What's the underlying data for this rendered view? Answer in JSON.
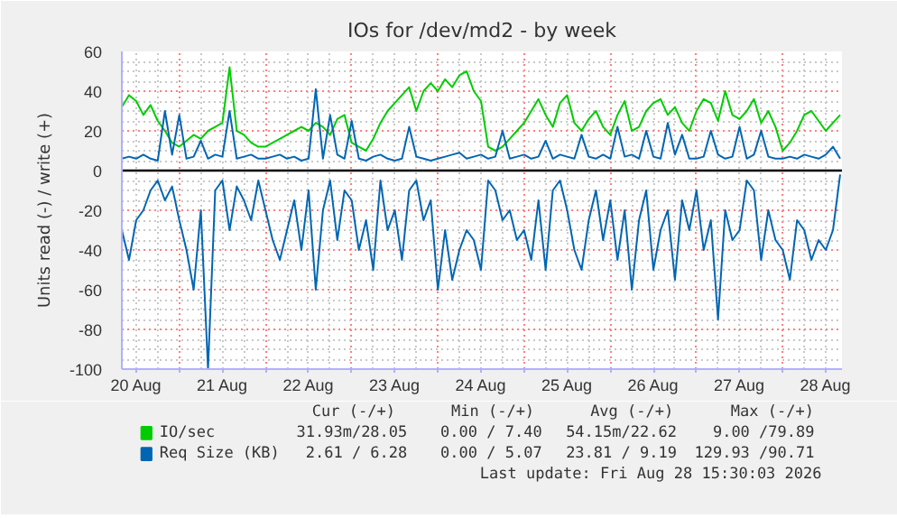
{
  "chart_data": {
    "type": "line",
    "title": "IOs for /dev/md2 - by week",
    "ylabel": "Units read (-) / write (+)",
    "x": [
      "2026-08-20T08:00",
      "2026-08-20T10:00",
      "2026-08-20T12:00",
      "2026-08-20T14:00",
      "2026-08-20T16:00",
      "2026-08-20T18:00",
      "2026-08-20T20:00",
      "2026-08-20T22:00",
      "2026-08-21T00:00",
      "2026-08-21T02:00",
      "2026-08-21T04:00",
      "2026-08-21T06:00",
      "2026-08-21T08:00",
      "2026-08-21T10:00",
      "2026-08-21T12:00",
      "2026-08-21T14:00",
      "2026-08-21T16:00",
      "2026-08-21T18:00",
      "2026-08-21T20:00",
      "2026-08-21T22:00",
      "2026-08-22T00:00",
      "2026-08-22T02:00",
      "2026-08-22T04:00",
      "2026-08-22T06:00",
      "2026-08-22T08:00",
      "2026-08-22T10:00",
      "2026-08-22T12:00",
      "2026-08-22T14:00",
      "2026-08-22T16:00",
      "2026-08-22T18:00",
      "2026-08-22T20:00",
      "2026-08-22T22:00",
      "2026-08-23T00:00",
      "2026-08-23T02:00",
      "2026-08-23T04:00",
      "2026-08-23T06:00",
      "2026-08-23T08:00",
      "2026-08-23T10:00",
      "2026-08-23T12:00",
      "2026-08-23T14:00",
      "2026-08-23T16:00",
      "2026-08-23T18:00",
      "2026-08-23T20:00",
      "2026-08-23T22:00",
      "2026-08-24T00:00",
      "2026-08-24T02:00",
      "2026-08-24T04:00",
      "2026-08-24T06:00",
      "2026-08-24T08:00",
      "2026-08-24T10:00",
      "2026-08-24T12:00",
      "2026-08-24T14:00",
      "2026-08-24T16:00",
      "2026-08-24T18:00",
      "2026-08-24T20:00",
      "2026-08-24T22:00",
      "2026-08-25T00:00",
      "2026-08-25T02:00",
      "2026-08-25T04:00",
      "2026-08-25T06:00",
      "2026-08-25T08:00",
      "2026-08-25T10:00",
      "2026-08-25T12:00",
      "2026-08-25T14:00",
      "2026-08-25T16:00",
      "2026-08-25T18:00",
      "2026-08-25T20:00",
      "2026-08-25T22:00",
      "2026-08-26T00:00",
      "2026-08-26T02:00",
      "2026-08-26T04:00",
      "2026-08-26T06:00",
      "2026-08-26T08:00",
      "2026-08-26T10:00",
      "2026-08-26T12:00",
      "2026-08-26T14:00",
      "2026-08-26T16:00",
      "2026-08-26T18:00",
      "2026-08-26T20:00",
      "2026-08-26T22:00",
      "2026-08-27T00:00",
      "2026-08-27T02:00",
      "2026-08-27T04:00",
      "2026-08-27T06:00",
      "2026-08-27T08:00",
      "2026-08-27T10:00",
      "2026-08-27T12:00",
      "2026-08-27T14:00",
      "2026-08-27T16:00",
      "2026-08-27T18:00",
      "2026-08-27T20:00",
      "2026-08-27T22:00",
      "2026-08-28T00:00",
      "2026-08-28T02:00",
      "2026-08-28T04:00",
      "2026-08-28T06:00",
      "2026-08-28T08:00",
      "2026-08-28T10:00",
      "2026-08-28T12:00",
      "2026-08-28T14:00",
      "2026-08-28T16:00"
    ],
    "series": [
      {
        "name": "IO/sec",
        "color": "#00cc00",
        "values": [
          32,
          38,
          35,
          28,
          33,
          25,
          20,
          14,
          12,
          15,
          18,
          16,
          20,
          22,
          24,
          52,
          20,
          18,
          14,
          12,
          12,
          14,
          16,
          18,
          20,
          22,
          20,
          24,
          22,
          18,
          26,
          28,
          14,
          12,
          10,
          16,
          24,
          30,
          34,
          38,
          42,
          30,
          40,
          44,
          40,
          46,
          42,
          48,
          50,
          40,
          35,
          12,
          10,
          12,
          16,
          20,
          24,
          30,
          36,
          28,
          22,
          34,
          38,
          24,
          20,
          26,
          30,
          22,
          18,
          28,
          35,
          20,
          22,
          30,
          34,
          36,
          28,
          32,
          24,
          20,
          30,
          36,
          34,
          25,
          40,
          28,
          26,
          30,
          36,
          24,
          30,
          22,
          10,
          14,
          20,
          28,
          30,
          25,
          20,
          24,
          28
        ]
      },
      {
        "name": "Req Size (KB)",
        "color": "#0066b3",
        "values": [
          6,
          7,
          6,
          8,
          6,
          5,
          30,
          8,
          28,
          6,
          7,
          15,
          6,
          8,
          7,
          30,
          6,
          7,
          8,
          6,
          6,
          7,
          8,
          6,
          7,
          5,
          6,
          41,
          6,
          28,
          8,
          6,
          25,
          6,
          5,
          7,
          8,
          6,
          5,
          6,
          22,
          7,
          6,
          5,
          6,
          7,
          8,
          9,
          6,
          7,
          8,
          6,
          7,
          20,
          6,
          7,
          8,
          6,
          7,
          15,
          6,
          8,
          7,
          6,
          18,
          7,
          6,
          8,
          6,
          22,
          7,
          8,
          6,
          20,
          7,
          6,
          24,
          8,
          18,
          6,
          6,
          7,
          20,
          8,
          6,
          7,
          22,
          6,
          8,
          20,
          7,
          6,
          6,
          7,
          6,
          8,
          7,
          6,
          8,
          12,
          6
        ]
      },
      {
        "color": "#0066b3",
        "values": [
          -30,
          -45,
          -25,
          -20,
          -10,
          -5,
          -15,
          -8,
          -25,
          -40,
          -60,
          -20,
          -100,
          -10,
          -5,
          -30,
          -8,
          -15,
          -25,
          -5,
          -20,
          -35,
          -45,
          -30,
          -15,
          -40,
          -10,
          -60,
          -20,
          -5,
          -35,
          -10,
          -15,
          -40,
          -25,
          -50,
          -5,
          -30,
          -20,
          -45,
          -10,
          -5,
          -25,
          -15,
          -60,
          -30,
          -55,
          -40,
          -30,
          -35,
          -50,
          -5,
          -10,
          -25,
          -20,
          -35,
          -30,
          -45,
          -15,
          -50,
          -10,
          -5,
          -20,
          -40,
          -50,
          -25,
          -10,
          -35,
          -15,
          -45,
          -20,
          -60,
          -25,
          -10,
          -50,
          -30,
          -20,
          -55,
          -15,
          -30,
          -10,
          -40,
          -25,
          -75,
          -20,
          -35,
          -30,
          -5,
          -10,
          -45,
          -20,
          -35,
          -40,
          -55,
          -25,
          -30,
          -45,
          -35,
          -40,
          -30,
          -2
        ]
      }
    ],
    "xlim": [
      "2026-08-20T08:00",
      "2026-08-28T16:30"
    ],
    "xticks": [
      {
        "value": "2026-08-20T12:00",
        "label": "20 Aug"
      },
      {
        "value": "2026-08-21T00:00",
        "label": null
      },
      {
        "value": "2026-08-21T12:00",
        "label": "21 Aug"
      },
      {
        "value": "2026-08-22T00:00",
        "label": null
      },
      {
        "value": "2026-08-22T12:00",
        "label": "22 Aug"
      },
      {
        "value": "2026-08-23T00:00",
        "label": null
      },
      {
        "value": "2026-08-23T12:00",
        "label": "23 Aug"
      },
      {
        "value": "2026-08-24T00:00",
        "label": null
      },
      {
        "value": "2026-08-24T12:00",
        "label": "24 Aug"
      },
      {
        "value": "2026-08-25T00:00",
        "label": null
      },
      {
        "value": "2026-08-25T12:00",
        "label": "25 Aug"
      },
      {
        "value": "2026-08-26T00:00",
        "label": null
      },
      {
        "value": "2026-08-26T12:00",
        "label": "26 Aug"
      },
      {
        "value": "2026-08-27T00:00",
        "label": null
      },
      {
        "value": "2026-08-27T12:00",
        "label": "27 Aug"
      },
      {
        "value": "2026-08-28T00:00",
        "label": null
      },
      {
        "value": "2026-08-28T12:00",
        "label": "28 Aug"
      }
    ],
    "ylim": [
      -100,
      60
    ],
    "yticks": [
      -100,
      -80,
      -60,
      -40,
      -20,
      0,
      20,
      40,
      60
    ],
    "ref_lines": [
      {
        "axis": "y",
        "value": 0,
        "color": "#000000"
      }
    ],
    "grid": true,
    "legend": "bottom",
    "annotations": [
      "Cur (-/+)",
      "Min (-/+)",
      "Avg (-/+)",
      "Max (-/+)",
      "31.93m/28.05",
      "0.00 / 7.40",
      "54.15m/22.62",
      "9.00 /79.89",
      "2.61 / 6.28",
      "0.00 / 5.07",
      "23.81 / 9.19",
      "129.93 /90.71",
      "Last update: Fri Aug 28 15:30:03 2026"
    ]
  }
}
